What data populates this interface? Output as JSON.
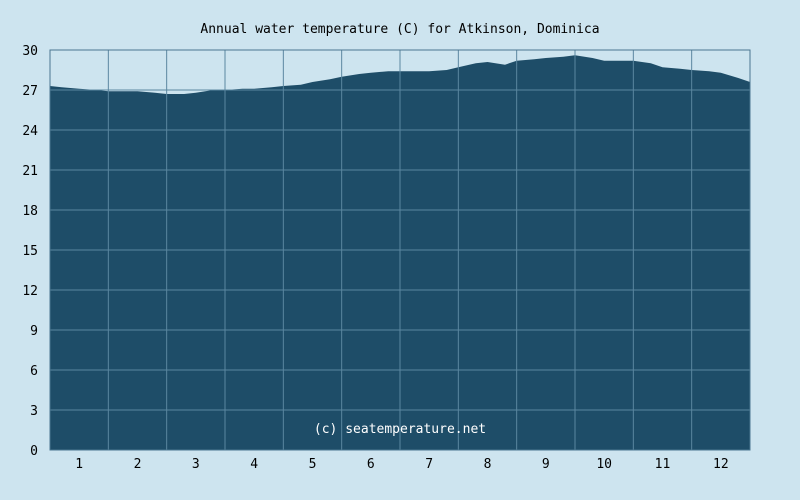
{
  "chart_data": {
    "type": "area",
    "title": "Annual water temperature (C) for Atkinson, Dominica",
    "xlabel": "",
    "ylabel": "",
    "ylim": [
      0,
      30
    ],
    "yticks": [
      0,
      3,
      6,
      9,
      12,
      15,
      18,
      21,
      24,
      27,
      30
    ],
    "xticks": [
      "1",
      "2",
      "3",
      "4",
      "5",
      "6",
      "7",
      "8",
      "9",
      "10",
      "11",
      "12"
    ],
    "xlim": [
      0.5,
      12.5
    ],
    "grid": true,
    "credit": "(c) seatemperature.net",
    "colors": {
      "fill": "#1e4d68",
      "background": "#cde4ef",
      "grid": "#5b87a0"
    },
    "series": [
      {
        "x": [
          0.5,
          0.7,
          1.0,
          1.3,
          1.5,
          1.8,
          2.0,
          2.3,
          2.5,
          2.8,
          3.0,
          3.3,
          3.5,
          3.8,
          4.0,
          4.3,
          4.5,
          4.8,
          5.0,
          5.3,
          5.5,
          5.8,
          6.0,
          6.3,
          6.5,
          6.8,
          7.0,
          7.3,
          7.5,
          7.8,
          8.0,
          8.3,
          8.5,
          8.8,
          9.0,
          9.3,
          9.5,
          9.8,
          10.0,
          10.3,
          10.5,
          10.8,
          11.0,
          11.3,
          11.5,
          11.8,
          12.0,
          12.3,
          12.5
        ],
        "values": [
          27.3,
          27.2,
          27.1,
          27.0,
          26.9,
          26.9,
          26.9,
          26.8,
          26.7,
          26.7,
          26.8,
          27.0,
          27.0,
          27.1,
          27.1,
          27.2,
          27.3,
          27.4,
          27.6,
          27.8,
          28.0,
          28.2,
          28.3,
          28.4,
          28.4,
          28.4,
          28.4,
          28.5,
          28.7,
          29.0,
          29.1,
          28.9,
          29.2,
          29.3,
          29.4,
          29.5,
          29.6,
          29.4,
          29.2,
          29.2,
          29.2,
          29.0,
          28.7,
          28.6,
          28.5,
          28.4,
          28.3,
          27.9,
          27.6
        ]
      }
    ]
  }
}
